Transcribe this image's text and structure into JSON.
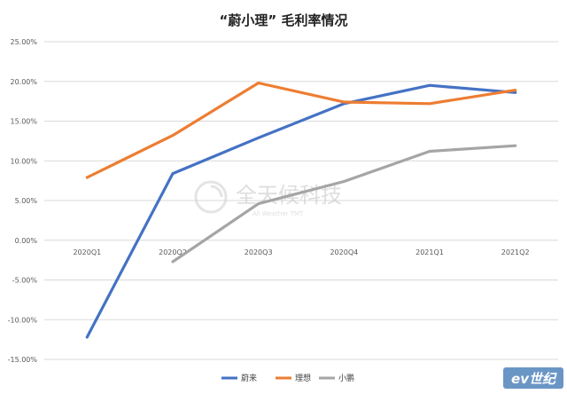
{
  "chart_data": {
    "type": "line",
    "title": "“蔚小理” 毛利率情况",
    "categories": [
      "2020Q1",
      "2020Q2",
      "2020Q3",
      "2020Q4",
      "2021Q1",
      "2021Q2"
    ],
    "y_ticks": [
      "25.00%",
      "20.00%",
      "15.00%",
      "10.00%",
      "5.00%",
      "0.00%",
      "-5.00%",
      "-10.00%",
      "-15.00%"
    ],
    "ylim": [
      -15,
      25
    ],
    "grid": true,
    "legend_position": "bottom",
    "series": [
      {
        "name": "蔚来",
        "color": "#4472c4",
        "values": [
          -12.2,
          8.4,
          12.9,
          17.2,
          19.5,
          18.6
        ]
      },
      {
        "name": "理想",
        "color": "#ed7d31",
        "values": [
          7.9,
          13.2,
          19.8,
          17.4,
          17.2,
          18.9
        ]
      },
      {
        "name": "小鹏",
        "color": "#a5a5a5",
        "values": [
          null,
          -2.7,
          4.6,
          7.4,
          11.2,
          11.9
        ]
      }
    ]
  },
  "watermark": {
    "cn": "全天候科技",
    "en": "All Weather TMT"
  },
  "brand": "ev世纪"
}
